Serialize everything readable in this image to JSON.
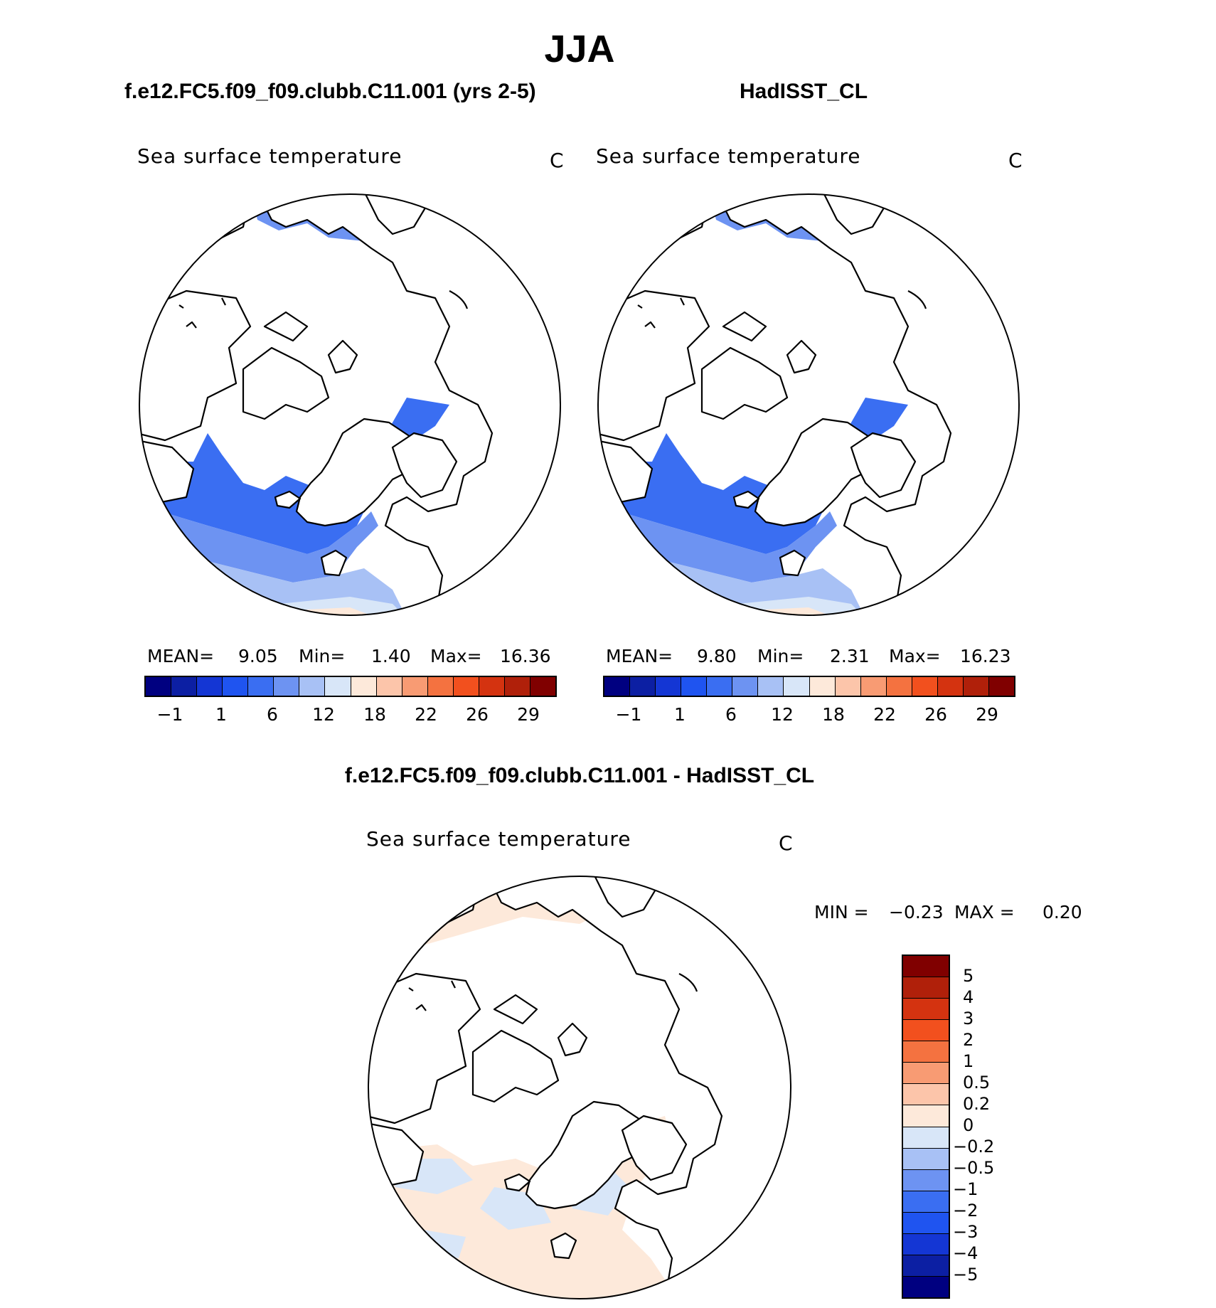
{
  "title": "JJA",
  "panels": {
    "left": {
      "header": "f.e12.FC5.f09_f09.clubb.C11.001 (yrs 2-5)",
      "variable": "Sea surface temperature",
      "units": "C",
      "mean_label": "MEAN=",
      "mean": "9.05",
      "min_label": "Min=",
      "min": "1.40",
      "max_label": "Max=",
      "max": "16.36"
    },
    "right": {
      "header": "HadISST_CL",
      "variable": "Sea surface temperature",
      "units": "C",
      "mean_label": "MEAN=",
      "mean": "9.80",
      "min_label": "Min=",
      "min": "2.31",
      "max_label": "Max=",
      "max": "16.23"
    },
    "diff": {
      "header": "f.e12.FC5.f09_f09.clubb.C11.001 - HadISST_CL",
      "variable": "Sea surface temperature",
      "units": "C",
      "min_label": "MIN =",
      "min": "−0.23",
      "max_label": "MAX =",
      "max": "0.20"
    }
  },
  "abs_colorbar": {
    "colors": [
      "#000080",
      "#0c1fa3",
      "#1436d4",
      "#1f54f0",
      "#3a6ef2",
      "#6d93f2",
      "#a8c1f5",
      "#d8e6f8",
      "#fde9da",
      "#fcc5aa",
      "#f89b73",
      "#f47240",
      "#f2501e",
      "#d43310",
      "#b0200a",
      "#800000"
    ],
    "tick_labels": [
      "−1",
      "1",
      "6",
      "12",
      "18",
      "22",
      "26",
      "29"
    ]
  },
  "diff_colorbar": {
    "colors": [
      "#800000",
      "#b0200a",
      "#d43310",
      "#f2501e",
      "#f47240",
      "#f89b73",
      "#fcc5aa",
      "#fde9da",
      "#d8e6f8",
      "#a8c1f5",
      "#6d93f2",
      "#3a6ef2",
      "#1f54f0",
      "#1436d4",
      "#0c1fa3",
      "#000080"
    ],
    "tick_labels": [
      "5",
      "4",
      "3",
      "2",
      "1",
      "0.5",
      "0.2",
      "0",
      "−0.2",
      "−0.5",
      "−1",
      "−2",
      "−3",
      "−4",
      "−5"
    ]
  }
}
